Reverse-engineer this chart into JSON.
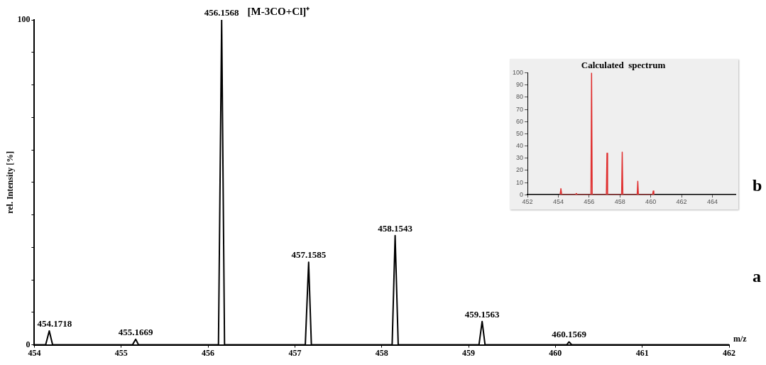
{
  "chart_data": [
    {
      "type": "line",
      "xlabel": "m/z",
      "ylabel": "rel. Intensity [%]",
      "xlim": [
        454,
        462
      ],
      "xticks": [
        454,
        455,
        456,
        457,
        458,
        459,
        460,
        461,
        462
      ],
      "ylim": [
        0,
        100
      ],
      "yticks": [
        0,
        {
          "value": 10,
          "label": null
        },
        {
          "value": 20,
          "label": null
        },
        {
          "value": 30,
          "label": null
        },
        {
          "value": 40,
          "label": null
        },
        {
          "value": 50,
          "label": null
        },
        {
          "value": 60,
          "label": null
        },
        {
          "value": 70,
          "label": null
        },
        {
          "value": 80,
          "label": null
        },
        {
          "value": 90,
          "label": null
        },
        100
      ],
      "grid": false,
      "legend": false,
      "marker": "none",
      "line_style": "solid",
      "series": [
        {
          "color": "#000000",
          "x": [
            454,
            454.13,
            454.1718,
            454.21,
            455.13,
            455.1669,
            455.2,
            456.12,
            456.1568,
            456.19,
            457.12,
            457.1585,
            457.19,
            458.12,
            458.1543,
            458.19,
            459.12,
            459.1563,
            459.19,
            460.13,
            460.1569,
            460.19,
            462
          ],
          "values": [
            0,
            0,
            4.3,
            0,
            0,
            1.7,
            0,
            0,
            100,
            0,
            0,
            25.4,
            0,
            0,
            33.6,
            0,
            0,
            7.2,
            0,
            0,
            0.9,
            0,
            0
          ]
        }
      ],
      "annotations": [
        {
          "text": "454.1718",
          "x": 454.1718,
          "y": 4.3
        },
        {
          "text": "455.1669",
          "x": 455.1669,
          "y": 1.7
        },
        {
          "text": "456.1568",
          "x": 456.1568,
          "y": 100
        },
        {
          "text": "[M-3CO+Cl]⁺",
          "x": 456.1568,
          "y": 100
        },
        {
          "text": "457.1585",
          "x": 457.1585,
          "y": 25.4
        },
        {
          "text": "458.1543",
          "x": 458.1543,
          "y": 33.6
        },
        {
          "text": "459.1563",
          "x": 459.1563,
          "y": 7.2
        },
        {
          "text": "460.1569",
          "x": 460.1569,
          "y": 0.9
        },
        "a"
      ]
    },
    {
      "type": "line",
      "title": "Calculated  spectrum",
      "xlim": [
        452,
        465.5
      ],
      "xticks": [
        452,
        454,
        456,
        458,
        460,
        462,
        464
      ],
      "ylim": [
        0,
        100
      ],
      "yticks": [
        0,
        10,
        20,
        30,
        40,
        50,
        60,
        70,
        80,
        90,
        100
      ],
      "grid": false,
      "legend": false,
      "marker": "none",
      "line_style": "solid",
      "series": [
        {
          "color": "#e03030",
          "x": [
            454.12,
            454.17,
            454.22,
            455.12,
            455.17,
            455.22,
            456.12,
            456.16,
            456.2,
            457.12,
            457.16,
            457.2,
            458.11,
            458.15,
            458.19,
            459.12,
            459.16,
            459.2,
            460.12,
            460.16,
            460.2
          ],
          "values": [
            0,
            5,
            0,
            0,
            1,
            0,
            0,
            100,
            0,
            0,
            34,
            0,
            0,
            35,
            0,
            0,
            11,
            0,
            0,
            3,
            0
          ]
        }
      ],
      "annotations": [
        "b"
      ]
    }
  ]
}
